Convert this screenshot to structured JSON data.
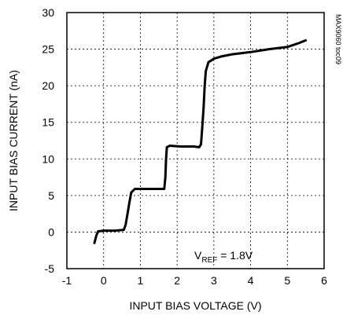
{
  "chart_data": {
    "type": "line",
    "xlabel": "INPUT BIAS VOLTAGE (V)",
    "ylabel": "INPUT BIAS CURRENT (nA)",
    "xlim": [
      -1,
      6
    ],
    "ylim": [
      -5,
      30
    ],
    "x_ticks": [
      "-1",
      "0",
      "1",
      "2",
      "3",
      "4",
      "5",
      "6"
    ],
    "y_ticks": [
      "-5",
      "0",
      "5",
      "10",
      "15",
      "20",
      "25",
      "30"
    ],
    "grid": true,
    "annotation": {
      "main": "V",
      "subscript": "REF",
      "rest": " = 1.8V"
    },
    "part_label": "MAX9060 toc09",
    "series": [
      {
        "color": "#000000",
        "points": [
          [
            -0.25,
            -1.5
          ],
          [
            -0.2,
            -0.5
          ],
          [
            -0.15,
            0.1
          ],
          [
            0.0,
            0.2
          ],
          [
            0.3,
            0.2
          ],
          [
            0.55,
            0.3
          ],
          [
            0.6,
            1.0
          ],
          [
            0.65,
            2.5
          ],
          [
            0.7,
            4.0
          ],
          [
            0.75,
            5.4
          ],
          [
            0.85,
            5.9
          ],
          [
            1.0,
            5.9
          ],
          [
            1.3,
            5.9
          ],
          [
            1.65,
            5.9
          ],
          [
            1.68,
            7.5
          ],
          [
            1.7,
            10.0
          ],
          [
            1.72,
            11.6
          ],
          [
            1.8,
            11.8
          ],
          [
            2.1,
            11.7
          ],
          [
            2.45,
            11.7
          ],
          [
            2.6,
            11.6
          ],
          [
            2.65,
            12.0
          ],
          [
            2.68,
            14.0
          ],
          [
            2.72,
            17.0
          ],
          [
            2.75,
            20.0
          ],
          [
            2.78,
            22.0
          ],
          [
            2.85,
            23.2
          ],
          [
            3.0,
            23.7
          ],
          [
            3.2,
            24.0
          ],
          [
            3.5,
            24.3
          ],
          [
            4.0,
            24.6
          ],
          [
            4.5,
            25.0
          ],
          [
            5.0,
            25.3
          ],
          [
            5.3,
            25.8
          ],
          [
            5.5,
            26.2
          ]
        ]
      }
    ]
  }
}
